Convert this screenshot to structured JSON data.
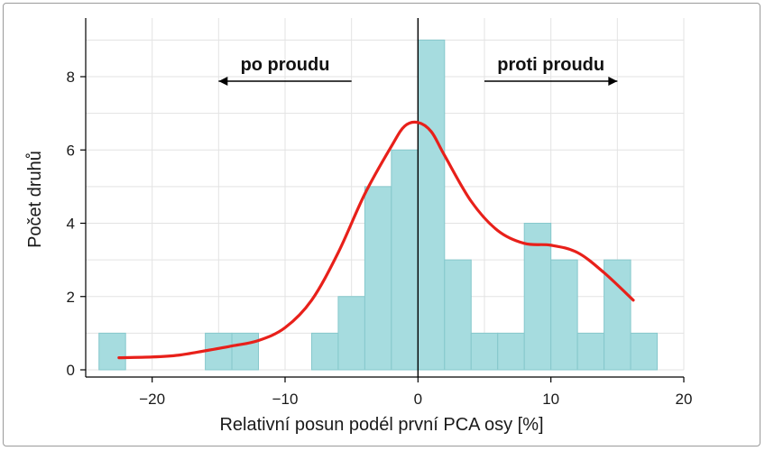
{
  "chart_data": {
    "type": "bar",
    "title": "",
    "xlabel": "Relativní posun podél první PCA osy [%]",
    "ylabel": "Počet druhů",
    "xlim": [
      -25,
      20
    ],
    "ylim": [
      0,
      9.6
    ],
    "x_ticks": [
      -20,
      -10,
      0,
      10,
      20
    ],
    "x_tick_labels": [
      "−20",
      "−10",
      "0",
      "10",
      "20"
    ],
    "y_ticks": [
      0,
      2,
      4,
      6,
      8
    ],
    "y_tick_labels": [
      "0",
      "2",
      "4",
      "6",
      "8"
    ],
    "grid": true,
    "bin_width": 2,
    "bins": [
      {
        "x0": -24,
        "x1": -22,
        "count": 1
      },
      {
        "x0": -16,
        "x1": -14,
        "count": 1
      },
      {
        "x0": -14,
        "x1": -12,
        "count": 1
      },
      {
        "x0": -8,
        "x1": -6,
        "count": 1
      },
      {
        "x0": -6,
        "x1": -4,
        "count": 2
      },
      {
        "x0": -4,
        "x1": -2,
        "count": 5
      },
      {
        "x0": -2,
        "x1": 0,
        "count": 6
      },
      {
        "x0": 0,
        "x1": 2,
        "count": 9
      },
      {
        "x0": 2,
        "x1": 4,
        "count": 3
      },
      {
        "x0": 4,
        "x1": 6,
        "count": 1
      },
      {
        "x0": 6,
        "x1": 8,
        "count": 1
      },
      {
        "x0": 8,
        "x1": 10,
        "count": 4
      },
      {
        "x0": 10,
        "x1": 12,
        "count": 3
      },
      {
        "x0": 12,
        "x1": 14,
        "count": 1
      },
      {
        "x0": 14,
        "x1": 16,
        "count": 3
      },
      {
        "x0": 16,
        "x1": 18,
        "count": 1
      }
    ],
    "density_curve": {
      "color": "#e8201a",
      "points": [
        [
          -22.5,
          0.33
        ],
        [
          -20,
          0.35
        ],
        [
          -18,
          0.4
        ],
        [
          -16,
          0.52
        ],
        [
          -14,
          0.65
        ],
        [
          -12,
          0.8
        ],
        [
          -10,
          1.15
        ],
        [
          -8,
          1.9
        ],
        [
          -6,
          3.2
        ],
        [
          -4,
          4.8
        ],
        [
          -2,
          6.1
        ],
        [
          -1,
          6.65
        ],
        [
          0,
          6.75
        ],
        [
          1,
          6.5
        ],
        [
          2,
          5.85
        ],
        [
          4,
          4.6
        ],
        [
          6,
          3.8
        ],
        [
          8,
          3.45
        ],
        [
          10,
          3.4
        ],
        [
          12,
          3.2
        ],
        [
          14,
          2.65
        ],
        [
          16.2,
          1.9
        ]
      ]
    },
    "vline_x": 0,
    "annotations": [
      {
        "text": "po proudu",
        "arrow": "left",
        "arrow_from": -5,
        "arrow_to": -15
      },
      {
        "text": "proti proudu",
        "arrow": "right",
        "arrow_from": 5,
        "arrow_to": 15
      }
    ],
    "colors": {
      "bar_fill": "#a6dcdf",
      "bar_stroke": "#86c8cc",
      "curve": "#e8201a",
      "grid": "#e3e3e3",
      "vline": "#000000"
    }
  }
}
